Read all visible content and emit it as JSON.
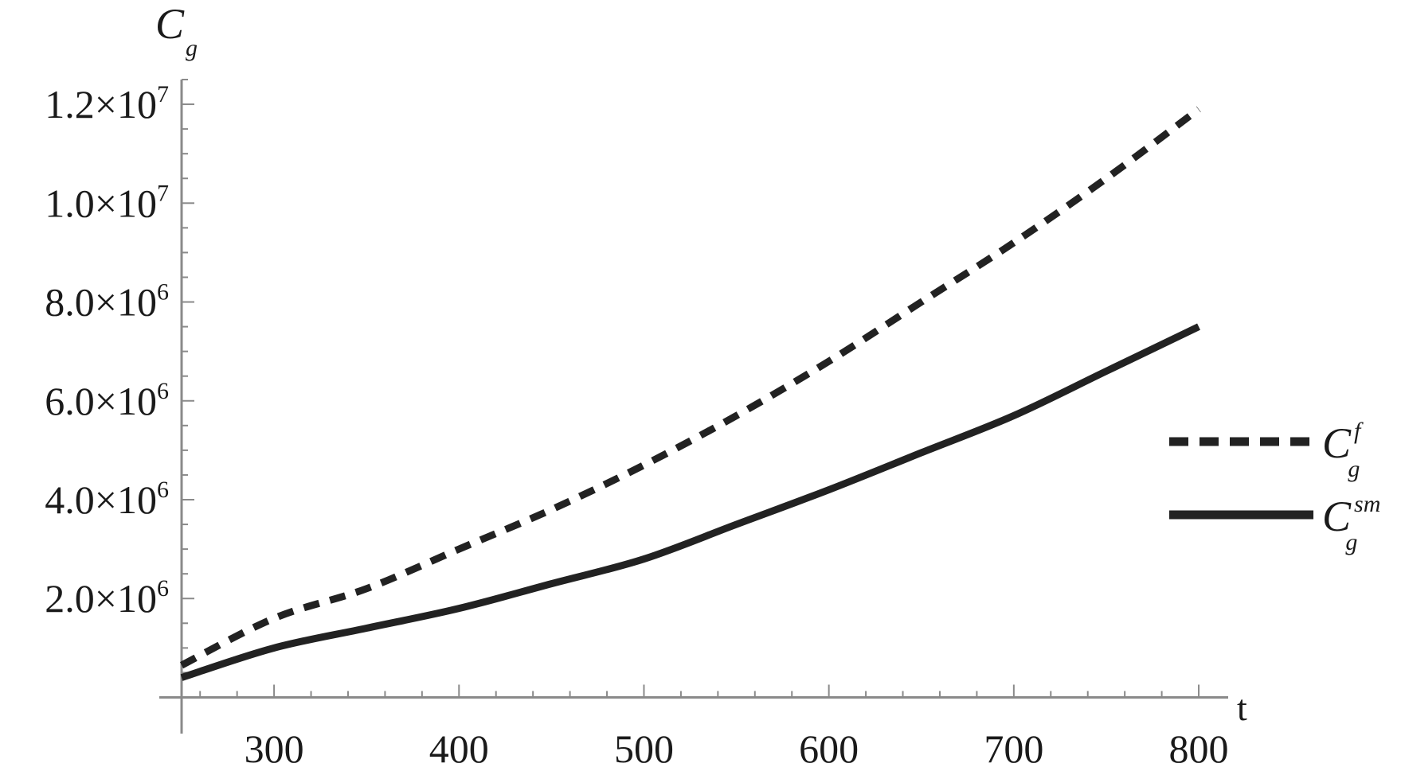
{
  "chart_data": {
    "type": "line",
    "ylabel": {
      "main": "C",
      "sub": "g"
    },
    "xlabel": "t",
    "xlim": [
      250,
      803
    ],
    "ylim": [
      -250000,
      12500000
    ],
    "x_ticks": [
      300,
      400,
      500,
      600,
      700,
      800
    ],
    "x_tick_labels": [
      "300",
      "400",
      "500",
      "600",
      "700",
      "800"
    ],
    "y_ticks": [
      2000000,
      4000000,
      6000000,
      8000000,
      10000000,
      12000000
    ],
    "y_tick_labels": [
      {
        "mantissa": "2.0×10",
        "exp": "6"
      },
      {
        "mantissa": "4.0×10",
        "exp": "6"
      },
      {
        "mantissa": "6.0×10",
        "exp": "6"
      },
      {
        "mantissa": "8.0×10",
        "exp": "6"
      },
      {
        "mantissa": "1.0×10",
        "exp": "7"
      },
      {
        "mantissa": "1.2×10",
        "exp": "7"
      }
    ],
    "grid": false,
    "legend_position": "right",
    "series": [
      {
        "name": {
          "main": "C",
          "sup": "f",
          "sub": "g"
        },
        "style": "dashed",
        "color": "#222222",
        "x": [
          250,
          300,
          350,
          400,
          450,
          500,
          550,
          600,
          650,
          700,
          750,
          800
        ],
        "y": [
          650000,
          1600000,
          2200000,
          3000000,
          3800000,
          4700000,
          5700000,
          6800000,
          8000000,
          9200000,
          10500000,
          11900000
        ]
      },
      {
        "name": {
          "main": "C",
          "sup": "sm",
          "sub": "g"
        },
        "style": "solid",
        "color": "#222222",
        "x": [
          250,
          300,
          350,
          400,
          450,
          500,
          550,
          600,
          650,
          700,
          750,
          800
        ],
        "y": [
          400000,
          1000000,
          1400000,
          1800000,
          2300000,
          2800000,
          3500000,
          4200000,
          4950000,
          5700000,
          6600000,
          7500000
        ]
      }
    ]
  }
}
